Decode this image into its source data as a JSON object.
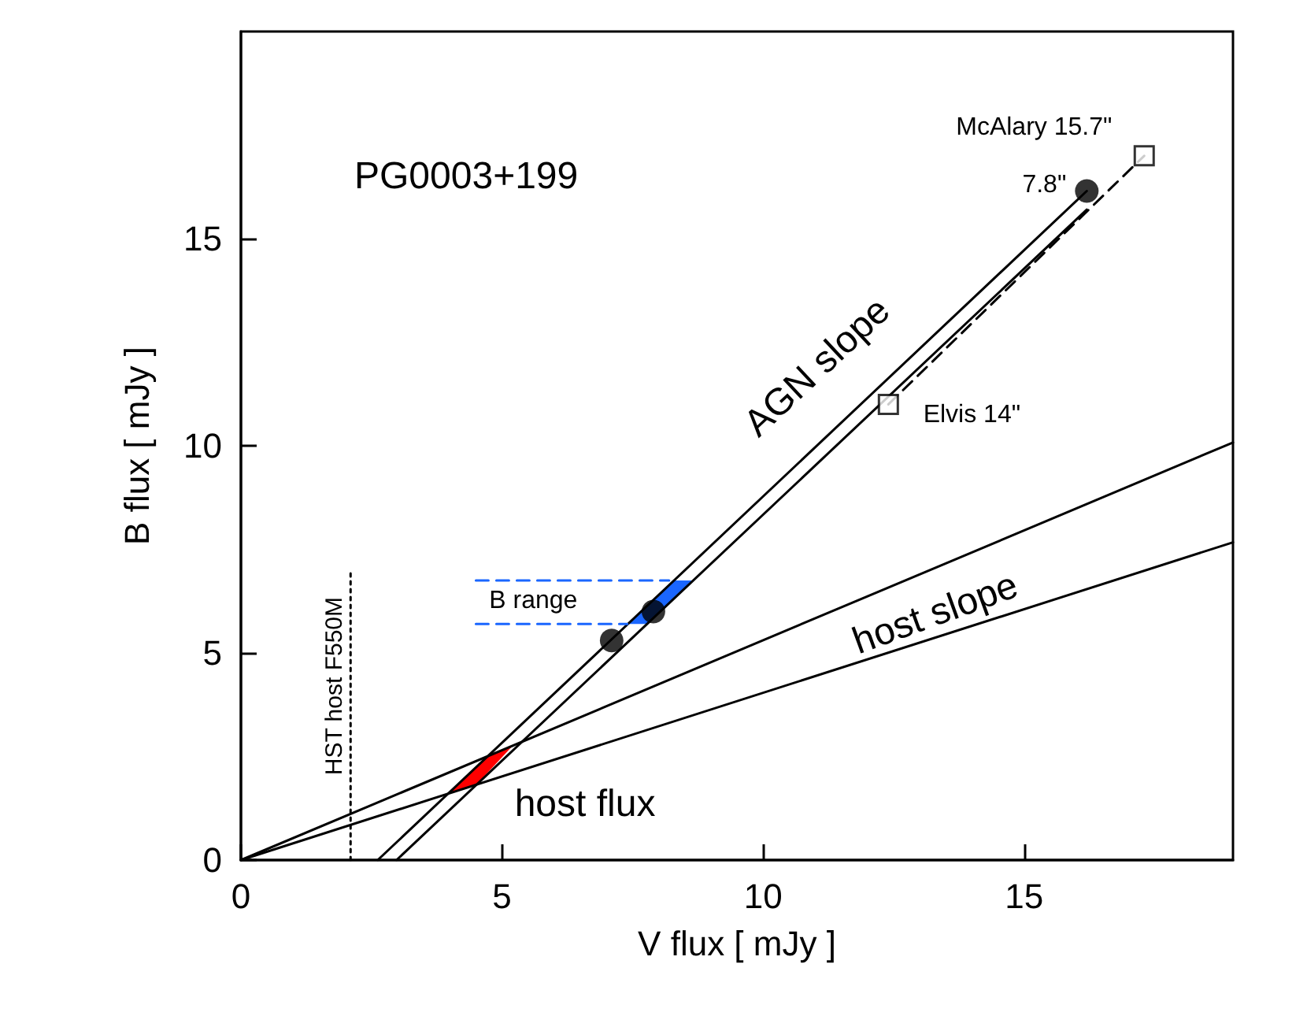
{
  "chart_data": {
    "type": "line",
    "title": "PG0003+199",
    "xlabel": "V flux [ mJy ]",
    "ylabel": "B flux [ mJy ]",
    "xlim": [
      0,
      19
    ],
    "ylim": [
      0,
      20
    ],
    "xticks": [
      0,
      5,
      10,
      15
    ],
    "yticks": [
      0,
      5,
      10,
      15
    ],
    "grid": false,
    "marker": "none",
    "line_style": "solid",
    "series": [
      {
        "color": "#000000",
        "x": [
          0,
          19
        ],
        "values": [
          0,
          10.08
        ]
      },
      {
        "color": "#000000",
        "x": [
          0,
          19
        ],
        "values": [
          0,
          7.67
        ]
      },
      {
        "color": "#000000",
        "x": [
          2.62,
          16.2
        ],
        "values": [
          0,
          16.15
        ]
      },
      {
        "color": "#000000",
        "x": [
          2.98,
          16.2
        ],
        "values": [
          0,
          15.7
        ]
      },
      {
        "color": "#000000",
        "x": [
          12.4,
          17.3
        ],
        "values": [
          11.0,
          17.0
        ],
        "line_style": "dashed"
      },
      {
        "color": "#000000",
        "x": [
          2.1,
          2.1
        ],
        "values": [
          0,
          6.95
        ],
        "line_style": "dotted"
      },
      {
        "color": "#1a66ff",
        "x": [
          4.5,
          8.2
        ],
        "values": [
          6.75,
          6.75
        ],
        "line_style": "dashed"
      },
      {
        "color": "#1a66ff",
        "x": [
          4.5,
          7.4
        ],
        "values": [
          5.7,
          5.7
        ],
        "line_style": "dashed"
      },
      {
        "type": "area",
        "color": "#ff0000",
        "x": [
          3.97,
          4.72,
          5.2,
          4.51
        ],
        "values": [
          1.6,
          2.5,
          2.75,
          1.82
        ]
      },
      {
        "type": "area",
        "color": "#1a66ff",
        "x": [
          7.41,
          8.29,
          8.65,
          7.77
        ],
        "values": [
          5.7,
          6.75,
          6.75,
          5.7
        ]
      },
      {
        "type": "scatter",
        "color": "#000000",
        "marker": "circle",
        "x": [
          7.1,
          7.9,
          16.2
        ],
        "values": [
          5.3,
          6.0,
          16.15
        ]
      },
      {
        "type": "scatter",
        "color": "#000000",
        "marker": "square",
        "x": [
          12.4,
          17.3
        ],
        "values": [
          11.0,
          17.0
        ]
      }
    ],
    "annotations": [
      {
        "text": "7.8\"",
        "x": 16.2,
        "y": 16.15
      },
      {
        "text": "McAlary 15.7\"",
        "x": 17.3,
        "y": 17.0
      },
      {
        "text": "Elvis 14\"",
        "x": 12.4,
        "y": 11.0
      },
      {
        "text": "AGN slope",
        "x": 11.4,
        "y": 10.45
      },
      {
        "text": "host slope",
        "x": 13.3,
        "y": 7.05
      },
      {
        "text": "host flux",
        "x": 4.72,
        "y": 2.3
      },
      {
        "text": "B range",
        "x": 5.6,
        "y": 6.75
      },
      {
        "text": "HST host F550M",
        "x": 2.1,
        "y": 4.2
      }
    ]
  }
}
